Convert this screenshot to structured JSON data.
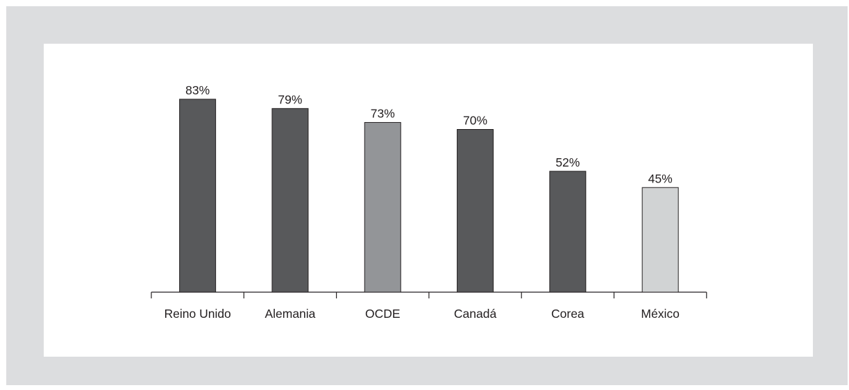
{
  "chart_data": {
    "type": "bar",
    "categories": [
      "Reino Unido",
      "Alemania",
      "OCDE",
      "Canadá",
      "Corea",
      "México"
    ],
    "values": [
      83,
      79,
      73,
      70,
      52,
      45
    ],
    "value_labels": [
      "83%",
      "79%",
      "73%",
      "70%",
      "52%",
      "45%"
    ],
    "bar_colors": [
      "#58595b",
      "#58595b",
      "#939598",
      "#58595b",
      "#58595b",
      "#d1d3d4"
    ],
    "title": "",
    "xlabel": "",
    "ylabel": "",
    "ylim": [
      0,
      100
    ],
    "grid": false,
    "legend": "none"
  },
  "colors": {
    "frame": "#dcdddf",
    "panel": "#ffffff",
    "dark_bar": "#58595b",
    "oecd_bar": "#939598",
    "highlight_bar": "#d1d3d4"
  }
}
